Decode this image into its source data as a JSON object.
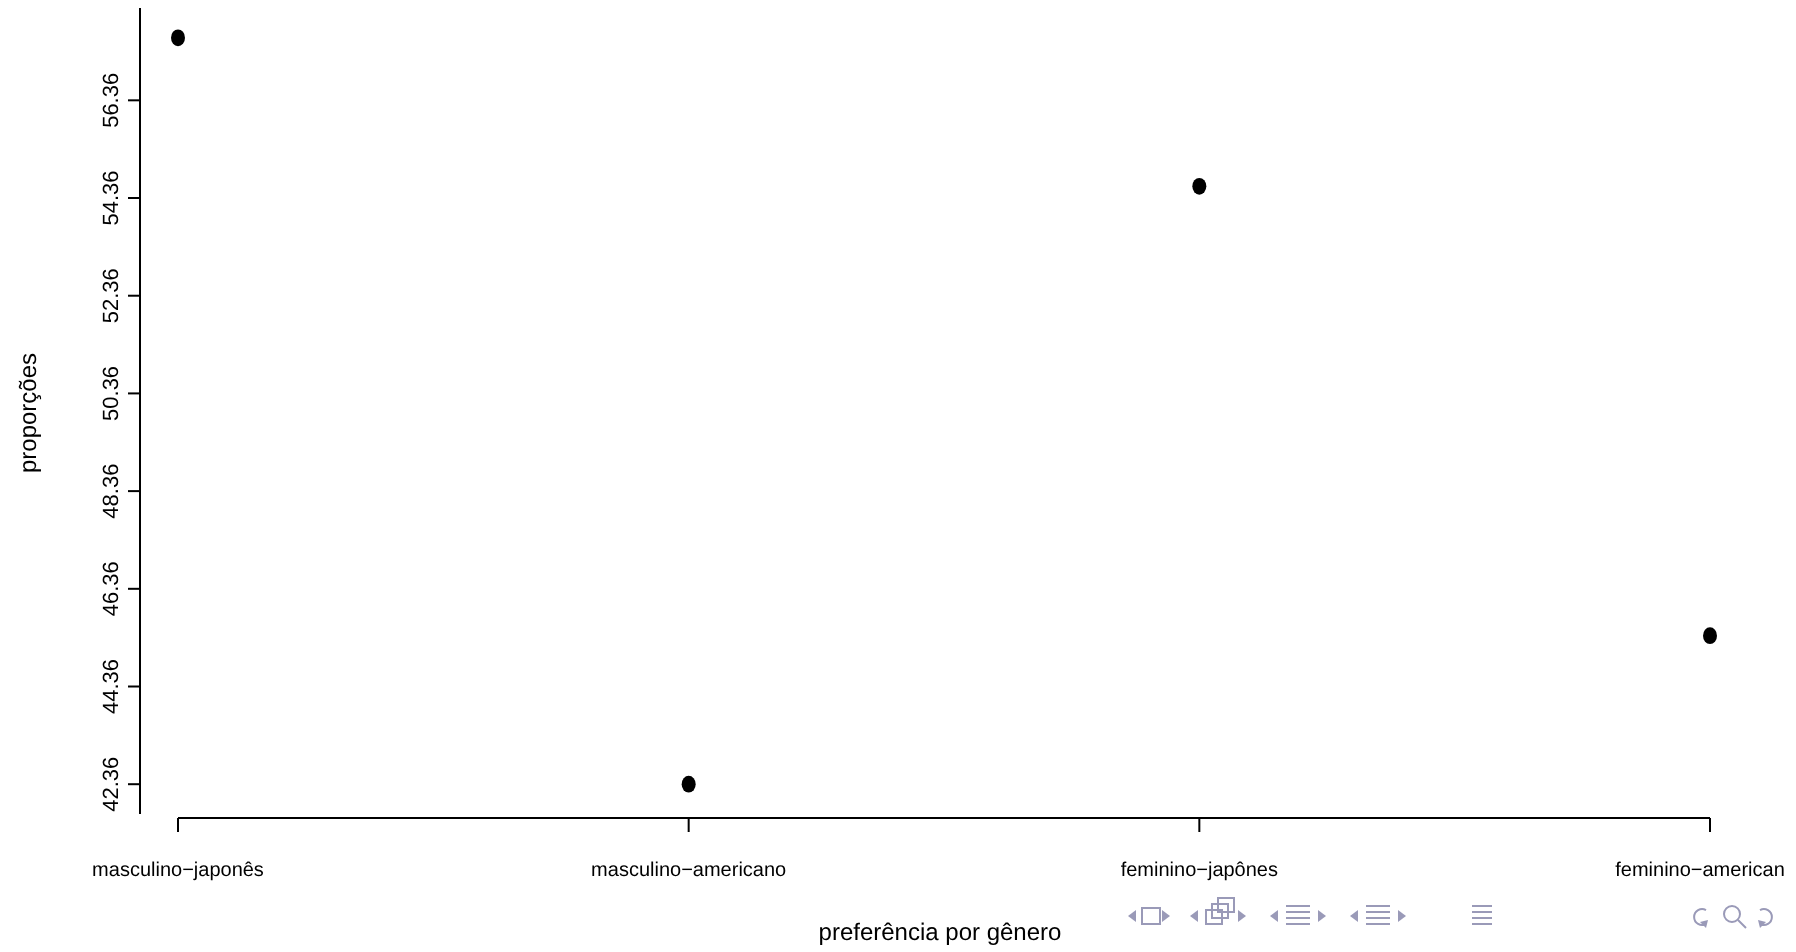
{
  "chart_data": {
    "type": "scatter",
    "xlabel": "preferência por gênero",
    "ylabel": "proporções",
    "categories": [
      "masculino−japonês",
      "masculino−americano",
      "feminino−japônes",
      "feminino−american"
    ],
    "series": [
      {
        "color": "#000000",
        "values": [
          57.64,
          42.36,
          54.6,
          45.4
        ]
      }
    ],
    "ylim": [
      41.75,
      58.25
    ],
    "yticks": [
      42.36,
      44.36,
      46.36,
      48.36,
      50.36,
      52.36,
      54.36,
      56.36
    ],
    "marker": "circle",
    "grid": false
  }
}
